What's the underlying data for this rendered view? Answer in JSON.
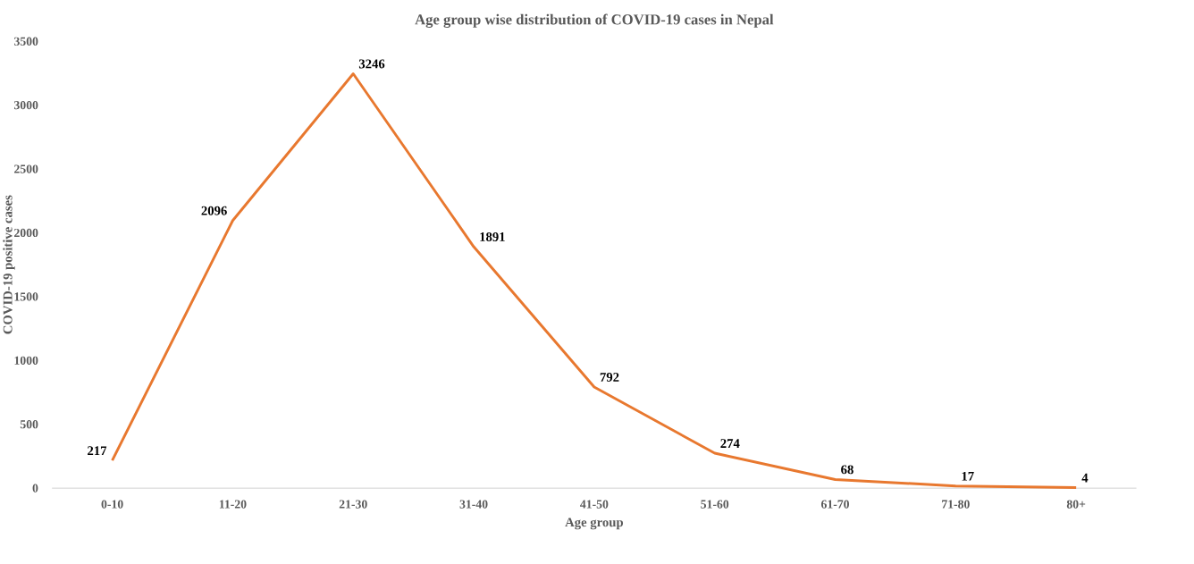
{
  "chart_data": {
    "type": "line",
    "title": "Age group wise distribution of COVID-19 cases in Nepal",
    "xlabel": "Age group",
    "ylabel": "COVID-19  positive cases",
    "categories": [
      "0-10",
      "11-20",
      "21-30",
      "31-40",
      "41-50",
      "51-60",
      "61-70",
      "71-80",
      "80+"
    ],
    "values": [
      217,
      2096,
      3246,
      1891,
      792,
      274,
      68,
      17,
      4
    ],
    "color": "#e8782f",
    "ylim": [
      0,
      3500
    ],
    "yticks": [
      0,
      500,
      1000,
      1500,
      2000,
      2500,
      3000,
      3500
    ],
    "marker": "none",
    "line_style": "solid",
    "data_labels": true
  }
}
